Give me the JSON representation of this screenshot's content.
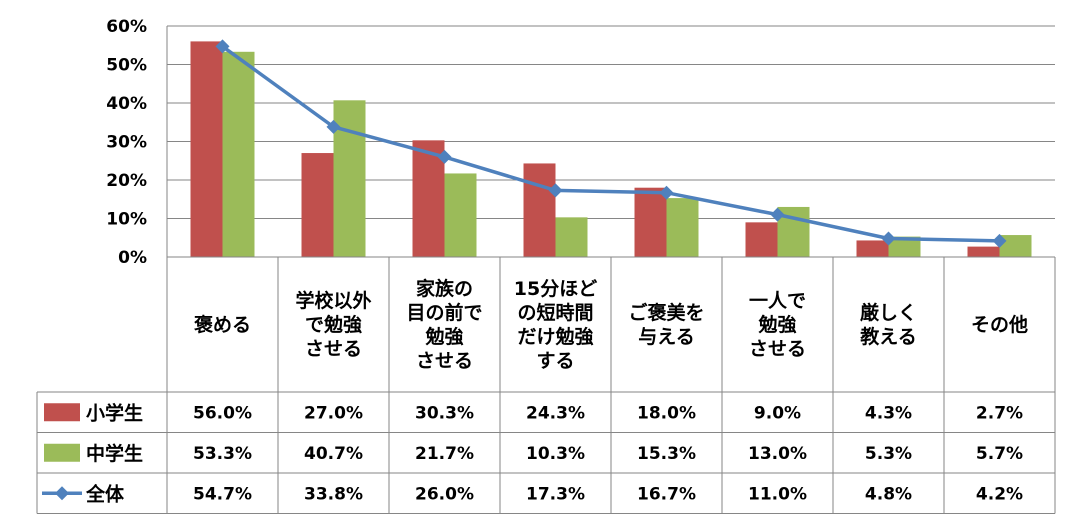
{
  "chart_data": {
    "type": "bar",
    "ylim": [
      0,
      60
    ],
    "yticks": [
      "0%",
      "10%",
      "20%",
      "30%",
      "40%",
      "50%",
      "60%"
    ],
    "grid": true,
    "categories": [
      [
        "褒める"
      ],
      [
        "学校以外",
        "で勉強",
        "させる"
      ],
      [
        "家族の",
        "目の前で",
        "勉強",
        "させる"
      ],
      [
        "15分ほど",
        "の短時間",
        "だけ勉強",
        "する"
      ],
      [
        "ご褒美を",
        "与える"
      ],
      [
        "一人で",
        "勉強",
        "させる"
      ],
      [
        "厳しく",
        "教える"
      ],
      [
        "その他"
      ]
    ],
    "series": [
      {
        "name": "小学生",
        "type": "bar",
        "color": "#c0504d",
        "values": [
          56.0,
          27.0,
          30.3,
          24.3,
          18.0,
          9.0,
          4.3,
          2.7
        ],
        "labels": [
          "56.0%",
          "27.0%",
          "30.3%",
          "24.3%",
          "18.0%",
          "9.0%",
          "4.3%",
          "2.7%"
        ]
      },
      {
        "name": "中学生",
        "type": "bar",
        "color": "#9bbb59",
        "values": [
          53.3,
          40.7,
          21.7,
          10.3,
          15.3,
          13.0,
          5.3,
          5.7
        ],
        "labels": [
          "53.3%",
          "40.7%",
          "21.7%",
          "10.3%",
          "15.3%",
          "13.0%",
          "5.3%",
          "5.7%"
        ]
      },
      {
        "name": "全体",
        "type": "line",
        "color": "#4f81bd",
        "values": [
          54.7,
          33.8,
          26.0,
          17.3,
          16.7,
          11.0,
          4.8,
          4.2
        ],
        "labels": [
          "54.7%",
          "33.8%",
          "26.0%",
          "17.3%",
          "16.7%",
          "11.0%",
          "4.8%",
          "4.2%"
        ]
      }
    ]
  }
}
